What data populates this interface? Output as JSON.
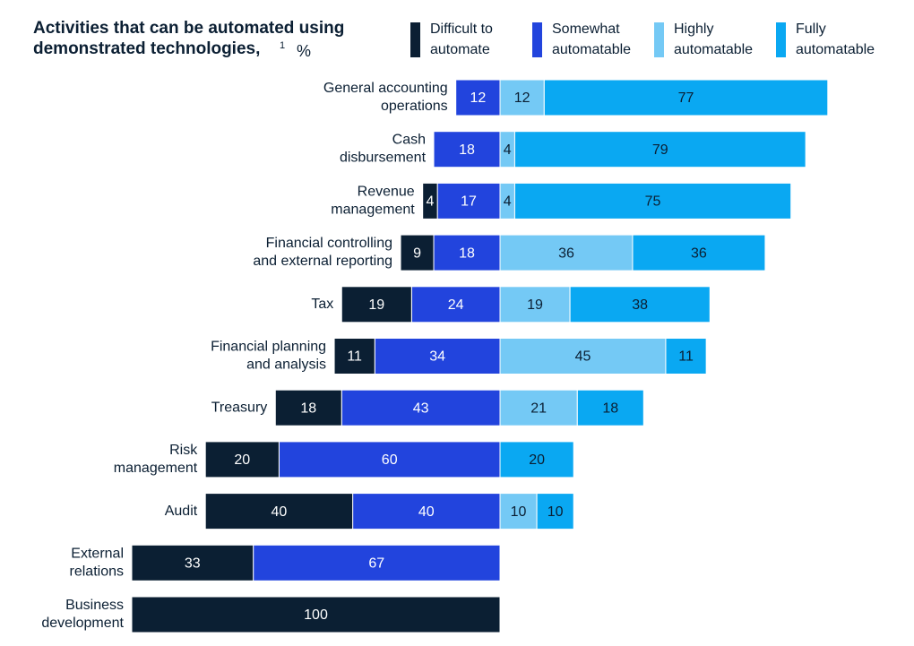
{
  "chart_data": {
    "type": "diverging_bar",
    "title": "Activities that can be automated using\ndemonstrated technologies,",
    "title_footnote": "1",
    "unit": "%",
    "categories": [
      "General accounting\noperations",
      "Cash\ndisbursement",
      "Revenue\nmanagement",
      "Financial controlling\nand external reporting",
      "Tax",
      "Financial planning\nand analysis",
      "Treasury",
      "Risk\nmanagement",
      "Audit",
      "External\nrelations",
      "Business\ndevelopment"
    ],
    "series": [
      {
        "name": "Difficult to\nautomate",
        "color": "#0b1f33",
        "side": "left",
        "values": [
          null,
          null,
          4,
          9,
          19,
          11,
          18,
          20,
          40,
          33,
          100
        ]
      },
      {
        "name": "Somewhat\nautomatable",
        "color": "#2244dd",
        "side": "left",
        "values": [
          12,
          18,
          17,
          18,
          24,
          34,
          43,
          60,
          40,
          67,
          null
        ]
      },
      {
        "name": "Highly\nautomatable",
        "color": "#74c9f5",
        "side": "right",
        "values": [
          12,
          4,
          4,
          36,
          19,
          45,
          21,
          null,
          10,
          null,
          null
        ]
      },
      {
        "name": "Fully\nautomatable",
        "color": "#0aa8f2",
        "side": "right",
        "values": [
          77,
          79,
          75,
          36,
          38,
          11,
          18,
          20,
          10,
          null,
          null
        ]
      }
    ]
  }
}
